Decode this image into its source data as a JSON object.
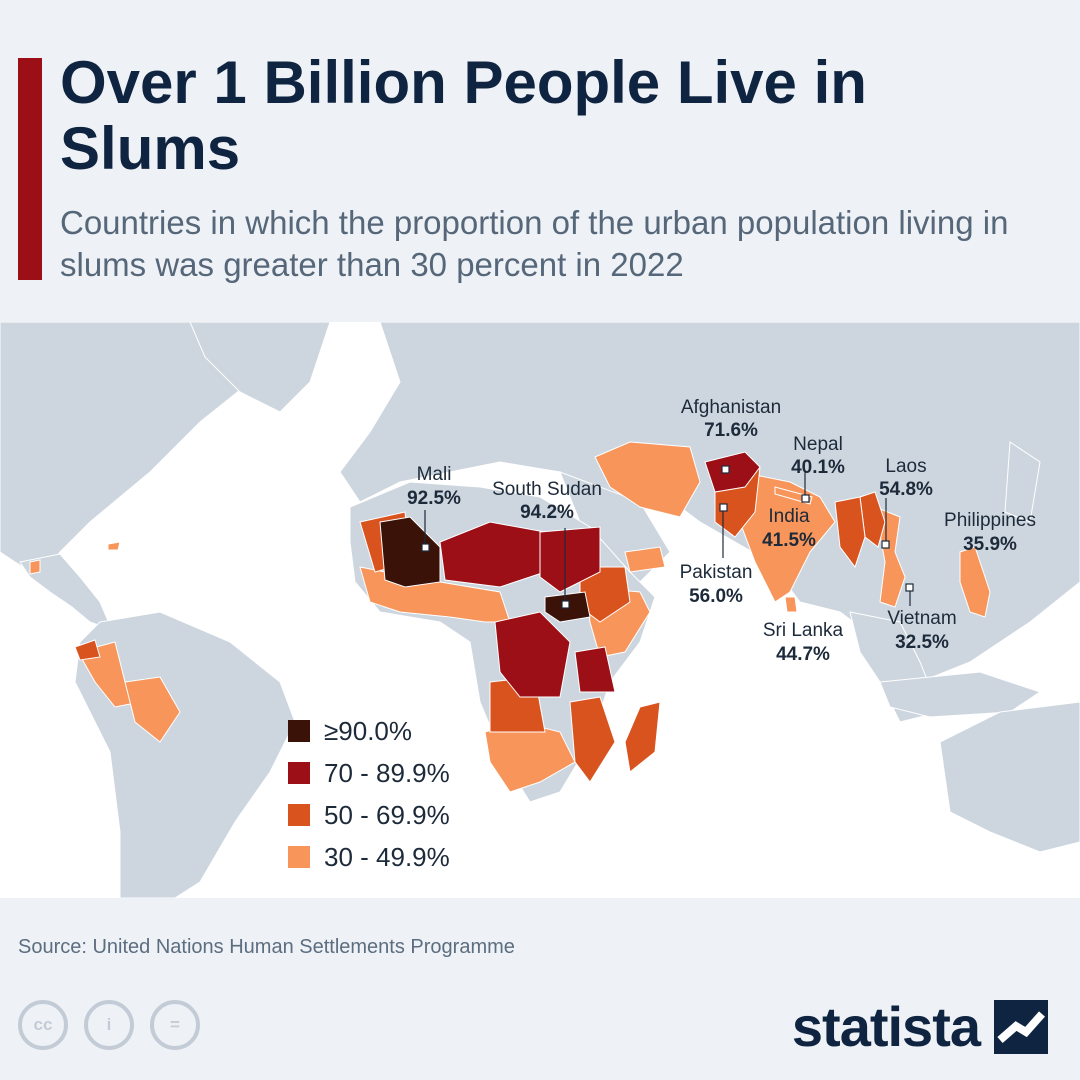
{
  "header": {
    "title": "Over 1 Billion People Live in Slums",
    "subtitle": "Countries in which the proportion of the urban population living in slums was greater than 30 percent in 2022"
  },
  "colors": {
    "accent": "#9c0f16",
    "ocean": "#ffffff",
    "land": "#cdd6df",
    "band_90_plus": "#3a1208",
    "band_70_89": "#9c0f16",
    "band_50_69": "#d9531e",
    "band_30_49": "#f7955a"
  },
  "chart_data": {
    "type": "choropleth",
    "unit": "%",
    "legend": {
      "placement": "bottom-left",
      "items": [
        {
          "label": "≥90.0%",
          "color": "#3a1208"
        },
        {
          "label": "70 - 89.9%",
          "color": "#9c0f16"
        },
        {
          "label": "50 - 69.9%",
          "color": "#d9531e"
        },
        {
          "label": "30 - 49.9%",
          "color": "#f7955a"
        }
      ]
    },
    "labeled_countries": [
      {
        "name": "Afghanistan",
        "value": "71.6%"
      },
      {
        "name": "Nepal",
        "value": "40.1%"
      },
      {
        "name": "Laos",
        "value": "54.8%"
      },
      {
        "name": "Mali",
        "value": "92.5%"
      },
      {
        "name": "South Sudan",
        "value": "94.2%"
      },
      {
        "name": "Philippines",
        "value": "35.9%"
      },
      {
        "name": "India",
        "value": "41.5%"
      },
      {
        "name": "Pakistan",
        "value": "56.0%"
      },
      {
        "name": "Sri Lanka",
        "value": "44.7%"
      },
      {
        "name": "Vietnam",
        "value": "32.5%"
      }
    ]
  },
  "footer": {
    "source": "Source: United Nations Human Settlements Programme",
    "cc_icons": [
      {
        "name": "cc-icon",
        "glyph": "cc"
      },
      {
        "name": "attribution-icon",
        "glyph": "i"
      },
      {
        "name": "no-derivatives-icon",
        "glyph": "="
      }
    ],
    "brand": "statista"
  }
}
